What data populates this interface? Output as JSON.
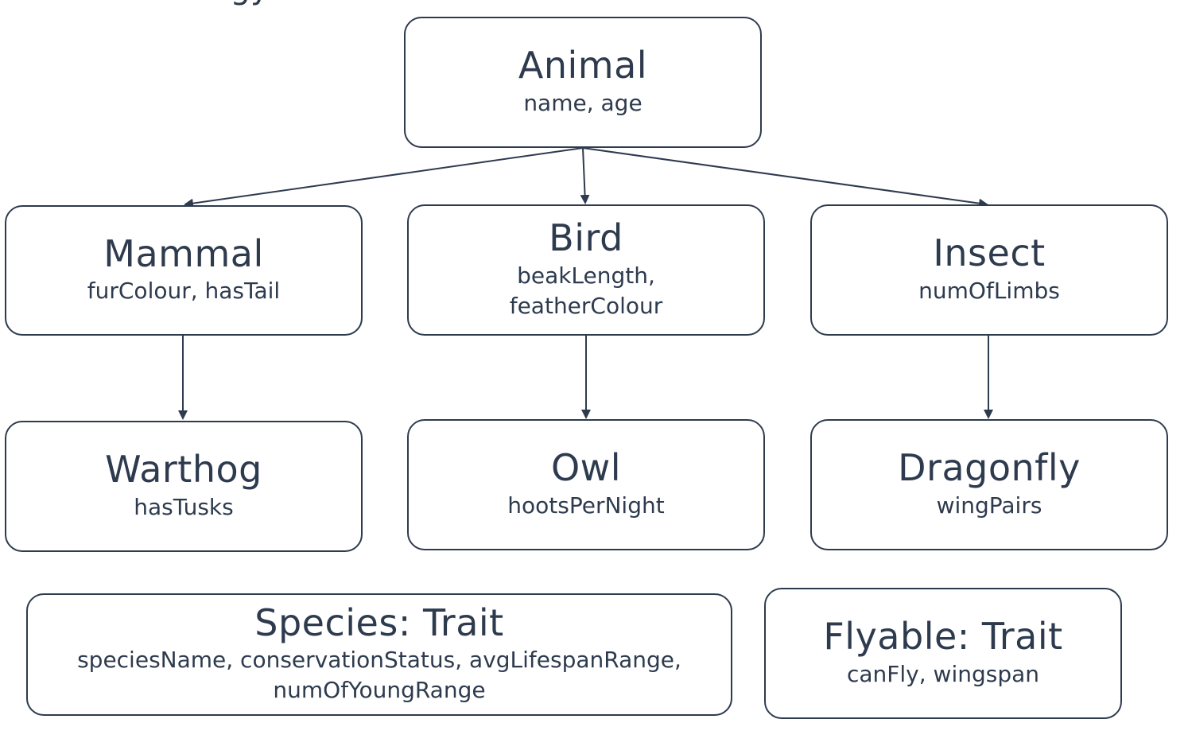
{
  "header_fragment": "ogy",
  "nodes": {
    "animal": {
      "title": "Animal",
      "fields": "name, age"
    },
    "mammal": {
      "title": "Mammal",
      "fields": "furColour, hasTail"
    },
    "bird": {
      "title": "Bird",
      "fields_line1": "beakLength,",
      "fields_line2": "featherColour"
    },
    "insect": {
      "title": "Insect",
      "fields": "numOfLimbs"
    },
    "warthog": {
      "title": "Warthog",
      "fields": "hasTusks"
    },
    "owl": {
      "title": "Owl",
      "fields": "hootsPerNight"
    },
    "dragonfly": {
      "title": "Dragonfly",
      "fields": "wingPairs"
    },
    "species": {
      "title": "Species: Trait",
      "fields_line1": "speciesName, conservationStatus, avgLifespanRange,",
      "fields_line2": "numOfYoungRange"
    },
    "flyable": {
      "title": "Flyable: Trait",
      "fields": "canFly, wingspan"
    }
  },
  "colors": {
    "stroke": "#2e3b4e",
    "text": "#2e3b4e",
    "background": "#ffffff"
  }
}
